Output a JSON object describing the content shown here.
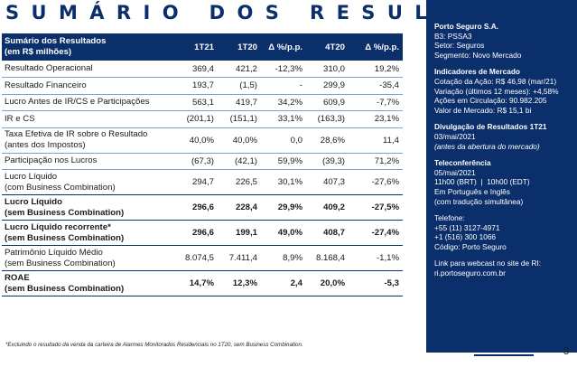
{
  "title": "SUMÁRIO DOS RESULTADOS",
  "table": {
    "header": {
      "label_line1": "Sumário dos Resultados",
      "label_line2": "(em R$ milhões)",
      "cols": [
        "1T21",
        "1T20",
        "Δ %/p.p.",
        "4T20",
        "Δ %/p.p."
      ]
    },
    "rows": [
      {
        "l1": "Resultado Operacional",
        "l2": "",
        "v": [
          "369,4",
          "421,2",
          "-12,3%",
          "310,0",
          "19,2%"
        ]
      },
      {
        "l1": "Resultado Financeiro",
        "l2": "",
        "v": [
          "193,7",
          "(1,5)",
          "-",
          "299,9",
          "-35,4"
        ]
      },
      {
        "l1": "Lucro Antes de IR/CS e Participações",
        "l2": "",
        "v": [
          "563,1",
          "419,7",
          "34,2%",
          "609,9",
          "-7,7%"
        ]
      },
      {
        "l1": "IR e CS",
        "l2": "",
        "v": [
          "(201,1)",
          "(151,1)",
          "33,1%",
          "(163,3)",
          "23,1%"
        ]
      },
      {
        "l1": "Taxa Efetiva de IR sobre o Resultado",
        "l2": "(antes dos Impostos)",
        "v": [
          "40,0%",
          "40,0%",
          "0,0",
          "28,6%",
          "11,4"
        ]
      },
      {
        "l1": "Participação nos Lucros",
        "l2": "",
        "v": [
          "(67,3)",
          "(42,1)",
          "59,9%",
          "(39,3)",
          "71,2%"
        ]
      },
      {
        "l1": "Lucro Líquido",
        "l2": "(com Business Combination)",
        "v": [
          "294,7",
          "226,5",
          "30,1%",
          "407,3",
          "-27,6%"
        ]
      },
      {
        "l1": "Lucro Líquido",
        "l2": "(sem Business Combination)",
        "v": [
          "296,6",
          "228,4",
          "29,9%",
          "409,2",
          "-27,5%"
        ],
        "bold": true
      },
      {
        "l1": "Lucro Líquido recorrente*",
        "l2": "(sem Business Combination)",
        "v": [
          "296,6",
          "199,1",
          "49,0%",
          "408,7",
          "-27,4%"
        ],
        "bold": true
      },
      {
        "l1": "Patrimônio Líquido Médio",
        "l2": "(sem Business Combination)",
        "v": [
          "8.074,5",
          "7.411,4",
          "8,9%",
          "8.168,4",
          "-1,1%"
        ]
      },
      {
        "l1": "ROAE",
        "l2": "(sem Business Combination)",
        "v": [
          "14,7%",
          "12,3%",
          "2,4",
          "20,0%",
          "-5,3"
        ],
        "bold": true
      }
    ]
  },
  "footnote": "*Excluindo o resultado da venda da carteira de Alarmes Monitorados Residenciais no 1T20, sem Business Combination.",
  "sidebar": {
    "company": "Porto Seguro S.A.",
    "ticker": "B3: PSSA3",
    "sector": "Setor: Seguros",
    "segment": "Segmento: Novo Mercado",
    "market_title": "Indicadores de Mercado",
    "market_lines": [
      "Cotação da Ação: R$ 46,98 (mar/21)",
      "Variação (últimos 12 meses): +4,58%",
      "Ações em  Circulação: 90.982.205",
      "Valor de Mercado: R$ 15,1 bi"
    ],
    "release_title": "Divulgação de Resultados 1T21",
    "release_date": "03/mai/2021",
    "release_note": "(antes da abertura do mercado)",
    "conf_title": "Teleconferência",
    "conf_date": "05/mai/2021",
    "conf_time": "11h00 (BRT)  |  10h00 (EDT)",
    "conf_lang1": "Em Português e Inglês",
    "conf_lang2": "(com tradução simultânea)",
    "phone_title": "Telefone:",
    "phone1": "+55 (11) 3127-4971",
    "phone2": "+1 (516) 300 1066",
    "code": "Código: Porto Seguro",
    "webcast_label": "Link para webcast no site de RI:",
    "webcast_url": "ri.portoseguro.com.br"
  },
  "page_number": "3"
}
